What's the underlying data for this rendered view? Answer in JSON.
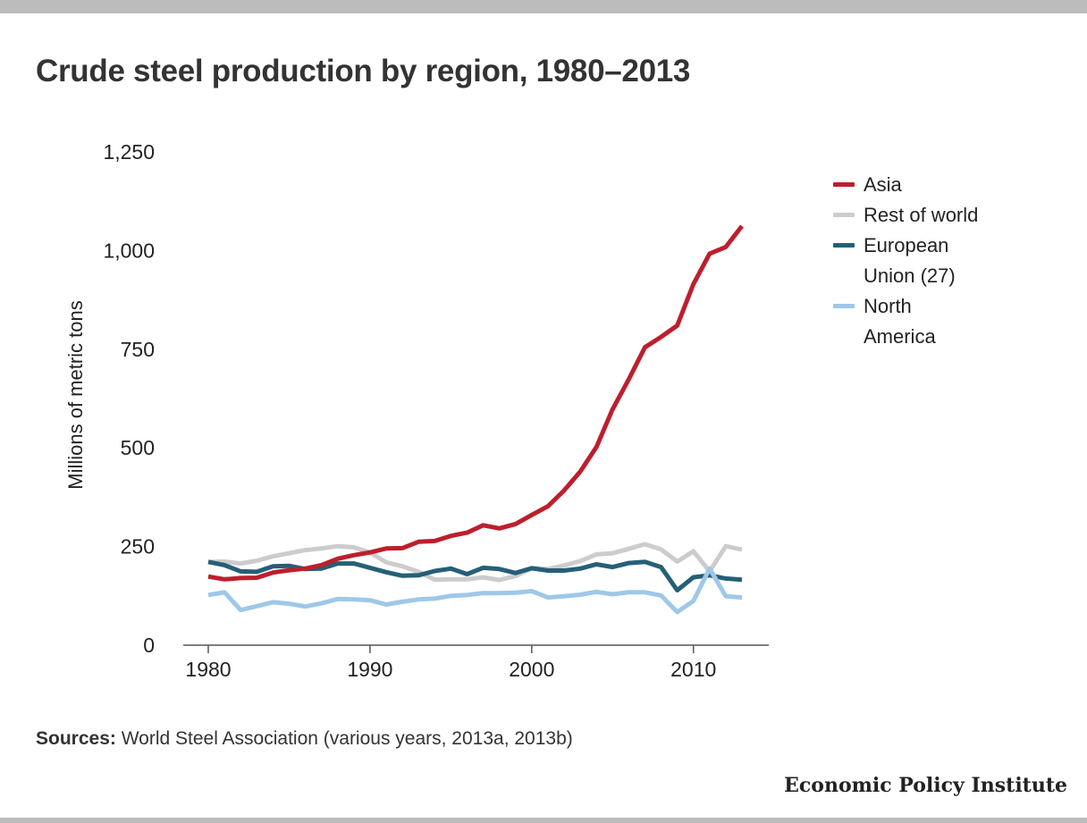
{
  "title": "Crude steel production by region, 1980–2013",
  "sources": {
    "label": "Sources:",
    "text": " World Steel Association (various years, 2013a, 2013b)"
  },
  "brand": "Economic Policy Institute",
  "chart_data": {
    "type": "line",
    "title": "Crude steel production by region, 1980–2013",
    "ylabel": "Millions of metric tons",
    "xlabel": "",
    "ylim": [
      0,
      1250
    ],
    "xlim": [
      1980,
      2014
    ],
    "yticks": [
      0,
      250,
      500,
      750,
      1000,
      1250
    ],
    "ytick_labels": [
      "0",
      "250",
      "500",
      "750",
      "1,000",
      "1,250"
    ],
    "xticks": [
      1980,
      1990,
      2000,
      2010
    ],
    "xtick_labels": [
      "1980",
      "1990",
      "2000",
      "2010"
    ],
    "grid": false,
    "legend_position": "right",
    "x": [
      1980,
      1981,
      1982,
      1983,
      1984,
      1985,
      1986,
      1987,
      1988,
      1989,
      1990,
      1991,
      1992,
      1993,
      1994,
      1995,
      1996,
      1997,
      1998,
      1999,
      2000,
      2001,
      2002,
      2003,
      2004,
      2005,
      2006,
      2007,
      2008,
      2009,
      2010,
      2011,
      2012,
      2013
    ],
    "series": [
      {
        "name": "Asia",
        "color": "#be1e2d",
        "values": [
          174,
          167,
          170,
          171,
          184,
          190,
          194,
          203,
          219,
          228,
          235,
          245,
          246,
          262,
          264,
          277,
          285,
          304,
          296,
          307,
          330,
          352,
          392,
          440,
          502,
          598,
          674,
          755,
          781,
          810,
          915,
          992,
          1009,
          1062
        ]
      },
      {
        "name": "Rest of world",
        "color": "#cccccc",
        "values": [
          211,
          212,
          207,
          214,
          225,
          233,
          241,
          245,
          251,
          248,
          235,
          210,
          200,
          186,
          166,
          167,
          167,
          172,
          165,
          175,
          195,
          193,
          202,
          213,
          230,
          233,
          244,
          256,
          243,
          212,
          238,
          187,
          251,
          242
        ]
      },
      {
        "name": "European Union (27)",
        "color": "#255f78",
        "values": [
          211,
          203,
          187,
          186,
          200,
          201,
          193,
          194,
          207,
          207,
          196,
          185,
          176,
          177,
          188,
          194,
          180,
          196,
          193,
          183,
          195,
          189,
          189,
          194,
          205,
          198,
          208,
          211,
          198,
          139,
          172,
          177,
          169,
          166
        ]
      },
      {
        "name": "North America",
        "color": "#9ec8e8",
        "values": [
          127,
          134,
          89,
          99,
          109,
          105,
          98,
          106,
          117,
          116,
          114,
          103,
          110,
          116,
          118,
          125,
          127,
          132,
          132,
          133,
          137,
          121,
          124,
          128,
          135,
          129,
          134,
          134,
          126,
          84,
          112,
          194,
          124,
          121
        ]
      }
    ]
  }
}
